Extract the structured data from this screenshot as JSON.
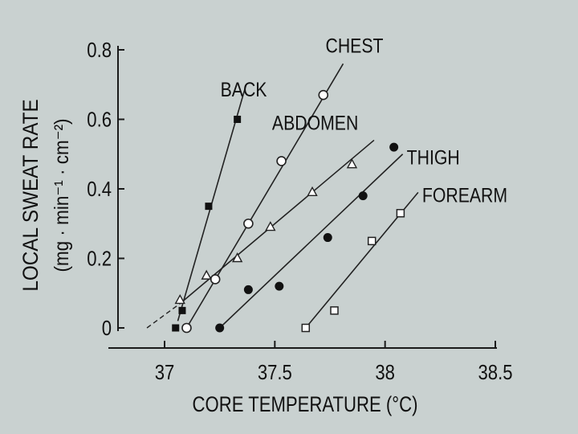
{
  "chart_data": {
    "type": "scatter",
    "xlabel": "CORE TEMPERATURE (°C)",
    "ylabel_line1": "LOCAL SWEAT RATE",
    "ylabel_line2": "(mg · min⁻¹ · cm⁻²)",
    "xlim": [
      36.8,
      38.5
    ],
    "ylim": [
      0,
      0.8
    ],
    "x_ticks": [
      37,
      37.5,
      38,
      38.5
    ],
    "x_tick_labels": [
      "37",
      "37.5",
      "38",
      "38.5"
    ],
    "y_ticks": [
      0,
      0.2,
      0.4,
      0.6,
      0.8
    ],
    "y_tick_labels": [
      "0",
      "0.2",
      "0.4",
      "0.6",
      "0.8"
    ],
    "grid": false,
    "series": [
      {
        "name": "BACK",
        "marker": "filled-square",
        "points": [
          [
            37.05,
            0.0
          ],
          [
            37.08,
            0.05
          ],
          [
            37.2,
            0.35
          ],
          [
            37.33,
            0.6
          ]
        ],
        "fit": [
          [
            37.06,
            0.02
          ],
          [
            37.37,
            0.7
          ]
        ]
      },
      {
        "name": "CHEST",
        "marker": "open-circle",
        "points": [
          [
            37.1,
            0.0
          ],
          [
            37.23,
            0.14
          ],
          [
            37.38,
            0.3
          ],
          [
            37.53,
            0.48
          ],
          [
            37.72,
            0.67
          ]
        ],
        "fit": [
          [
            37.1,
            0.0
          ],
          [
            37.81,
            0.76
          ]
        ]
      },
      {
        "name": "ABDOMEN",
        "marker": "open-triangle",
        "points": [
          [
            37.07,
            0.08
          ],
          [
            37.19,
            0.15
          ],
          [
            37.33,
            0.2
          ],
          [
            37.48,
            0.29
          ],
          [
            37.67,
            0.39
          ],
          [
            37.85,
            0.47
          ]
        ],
        "fit": [
          [
            37.07,
            0.07
          ],
          [
            37.95,
            0.54
          ]
        ],
        "extrapolation": [
          [
            36.92,
            0.0
          ],
          [
            37.07,
            0.07
          ]
        ]
      },
      {
        "name": "THIGH",
        "marker": "filled-circle",
        "points": [
          [
            37.25,
            0.0
          ],
          [
            37.38,
            0.11
          ],
          [
            37.52,
            0.12
          ],
          [
            37.74,
            0.26
          ],
          [
            37.9,
            0.38
          ],
          [
            38.04,
            0.52
          ]
        ],
        "fit": [
          [
            37.25,
            0.0
          ],
          [
            38.08,
            0.5
          ]
        ]
      },
      {
        "name": "FOREARM",
        "marker": "open-square",
        "points": [
          [
            37.64,
            0.0
          ],
          [
            37.77,
            0.05
          ],
          [
            37.94,
            0.25
          ],
          [
            38.07,
            0.33
          ]
        ],
        "fit": [
          [
            37.64,
            0.0
          ],
          [
            38.15,
            0.39
          ]
        ]
      }
    ]
  }
}
